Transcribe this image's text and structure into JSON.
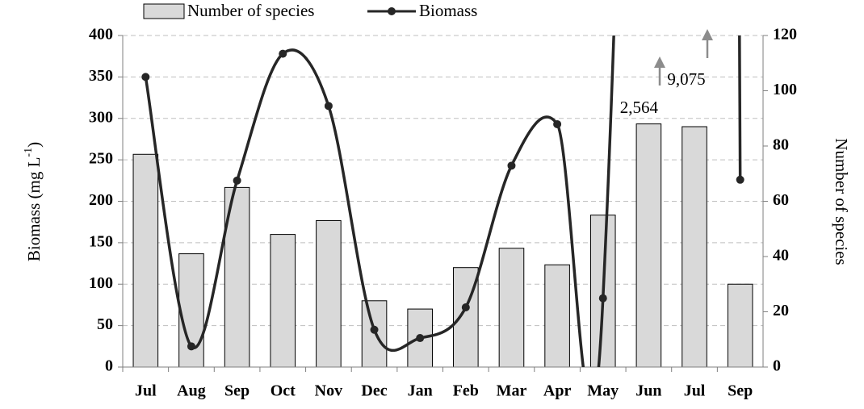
{
  "chart_data": {
    "type": "bar-line",
    "categories": [
      "Jul",
      "Aug",
      "Sep",
      "Oct",
      "Nov",
      "Dec",
      "Jan",
      "Feb",
      "Mar",
      "Apr",
      "May",
      "Jun",
      "Jul",
      "Sep"
    ],
    "y_label_parts": [
      "Biomass (mg L",
      "-1",
      ")"
    ],
    "y2_label": "Number of species",
    "ylim": [
      0,
      400
    ],
    "yticks": [
      0,
      50,
      100,
      150,
      200,
      250,
      300,
      350,
      400
    ],
    "y2lim": [
      0,
      120
    ],
    "y2ticks": [
      0,
      20,
      40,
      60,
      80,
      100,
      120
    ],
    "grid": true,
    "series": [
      {
        "name": "Number of species",
        "type": "bar",
        "axis": "y2",
        "color": "#d9d9d9",
        "values": [
          77,
          41,
          65,
          48,
          53,
          24,
          21,
          36,
          43,
          37,
          55,
          88,
          87,
          30
        ]
      },
      {
        "name": "Biomass",
        "type": "line",
        "color": "#262626",
        "values": [
          350,
          25,
          225,
          378,
          315,
          45,
          35,
          72,
          243,
          293,
          83,
          2564,
          9075,
          226
        ],
        "value_labels": [
          null,
          null,
          null,
          null,
          null,
          null,
          null,
          null,
          null,
          null,
          null,
          "2,564",
          "9,075",
          null
        ]
      }
    ]
  }
}
